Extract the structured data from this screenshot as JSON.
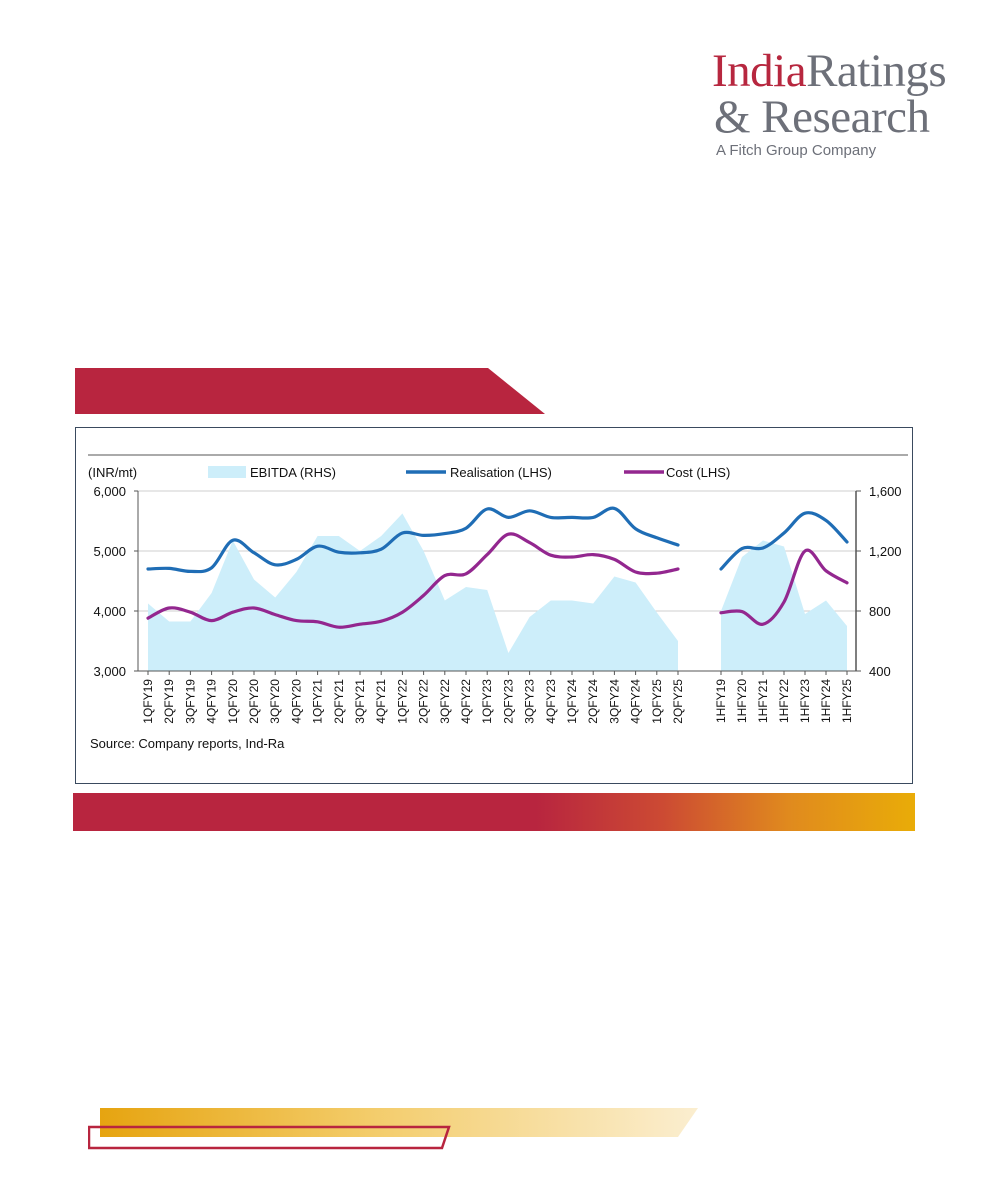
{
  "logo": {
    "brand_part1": "India",
    "brand_part2": "Ratings",
    "brand_line2": "& Research",
    "tagline": "A Fitch Group Company"
  },
  "colors": {
    "brand_red": "#b8253f",
    "brand_gold": "#e9ac08",
    "ebitda": "#cdeefa",
    "realisation": "#1f6db5",
    "cost": "#93278f"
  },
  "chart_data": {
    "type": "line",
    "unit_label": "(INR/mt)",
    "source": "Source: Company reports, Ind-Ra",
    "legend": {
      "ebitda": "EBITDA (RHS)",
      "realisation": "Realisation (LHS)",
      "cost": "Cost (LHS)"
    },
    "y_left": {
      "min": 3000,
      "max": 6000,
      "ticks": [
        "6,000",
        "5,000",
        "4,000",
        "3,000"
      ]
    },
    "y_right": {
      "min": 400,
      "max": 1600,
      "ticks": [
        "1,600",
        "1,200",
        "800",
        "400"
      ]
    },
    "grid": "horizontal",
    "legend_position": "top",
    "panels": [
      {
        "name": "quarterly",
        "categories": [
          "1QFY19",
          "2QFY19",
          "3QFY19",
          "4QFY19",
          "1QFY20",
          "2QFY20",
          "3QFY20",
          "4QFY20",
          "1QFY21",
          "2QFY21",
          "3QFY21",
          "4QFY21",
          "1QFY22",
          "2QFY22",
          "3QFY22",
          "4QFY22",
          "1QFY23",
          "2QFY23",
          "3QFY23",
          "4QFY23",
          "1QFY24",
          "2QFY24",
          "3QFY24",
          "4QFY24",
          "1QFY25",
          "2QFY25"
        ],
        "series": [
          {
            "name": "EBITDA (RHS)",
            "axis": "right",
            "values": [
              850,
              730,
              730,
              920,
              1270,
              1010,
              890,
              1060,
              1300,
              1300,
              1200,
              1300,
              1450,
              1200,
              870,
              960,
              940,
              520,
              760,
              870,
              870,
              850,
              1030,
              990,
              790,
              600
            ]
          },
          {
            "name": "Realisation (LHS)",
            "axis": "left",
            "values": [
              4700,
              4710,
              4660,
              4720,
              5180,
              4970,
              4770,
              4860,
              5080,
              4980,
              4970,
              5030,
              5300,
              5260,
              5290,
              5380,
              5700,
              5560,
              5670,
              5560,
              5560,
              5560,
              5710,
              5370,
              5220,
              5100
            ]
          },
          {
            "name": "Cost (LHS)",
            "axis": "left",
            "values": [
              3880,
              4050,
              3980,
              3840,
              3980,
              4050,
              3940,
              3840,
              3820,
              3730,
              3780,
              3830,
              3980,
              4260,
              4590,
              4620,
              4940,
              5280,
              5140,
              4930,
              4900,
              4940,
              4860,
              4650,
              4630,
              4700
            ]
          }
        ]
      },
      {
        "name": "half-yearly",
        "categories": [
          "1HFY19",
          "1HFY20",
          "1HFY21",
          "1HFY22",
          "1HFY23",
          "1HFY24",
          "1HFY25"
        ],
        "series": [
          {
            "name": "EBITDA (RHS)",
            "axis": "right",
            "values": [
              800,
              1160,
              1270,
              1230,
              780,
              870,
              700
            ]
          },
          {
            "name": "Realisation (LHS)",
            "axis": "left",
            "values": [
              4700,
              5040,
              5050,
              5300,
              5630,
              5510,
              5150
            ]
          },
          {
            "name": "Cost (LHS)",
            "axis": "left",
            "values": [
              3970,
              3990,
              3780,
              4150,
              5000,
              4670,
              4470
            ]
          }
        ]
      }
    ]
  }
}
